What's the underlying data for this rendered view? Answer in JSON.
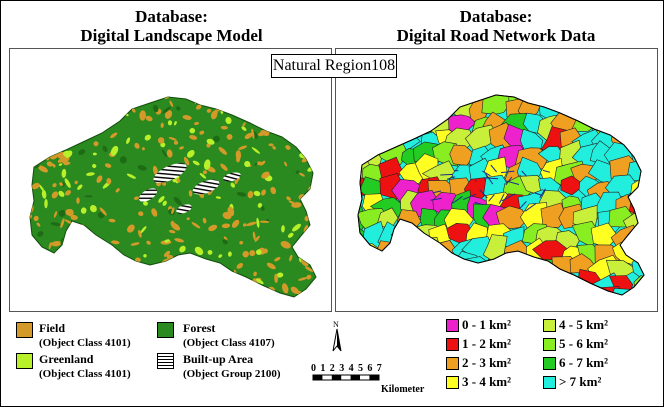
{
  "titles": {
    "left_line1": "Database:",
    "left_line2": "Digital Landscape Model",
    "right_line1": "Database:",
    "right_line2": "Digital Road Network Data"
  },
  "region_label": "Natural Region108",
  "colors": {
    "forest": "#2b8a1f",
    "field": "#d39a2a",
    "greenland": "#b8f02a",
    "builtup_hatch": "#000000"
  },
  "landscape_legend": [
    {
      "name": "Field",
      "detail": "(Object  Class 4101)",
      "color": "#d39a2a"
    },
    {
      "name": "Greenland",
      "detail": "(Object  Class 4101)",
      "color": "#b8f02a"
    },
    {
      "name": "Forest",
      "detail": "(Object  Class 4107)",
      "color": "#2b8a1f"
    },
    {
      "name": "Built-up Area",
      "detail": "(Object Group 2100)",
      "color": "hatch"
    }
  ],
  "road_classes": [
    {
      "label": "0 - 1 km²",
      "color": "#ee22cc"
    },
    {
      "label": "1 - 2 km²",
      "color": "#ee1111"
    },
    {
      "label": "2 - 3 km²",
      "color": "#f0a020"
    },
    {
      "label": "3 - 4 km²",
      "color": "#ffff22"
    },
    {
      "label": "4 - 5 km²",
      "color": "#c8f03a"
    },
    {
      "label": "5 - 6 km²",
      "color": "#88ee22"
    },
    {
      "label": "6 - 7 km²",
      "color": "#22cc22"
    },
    {
      "label": "> 7 km²",
      "color": "#22eedd"
    }
  ],
  "scale": {
    "ticks": [
      "0",
      "1",
      "2",
      "3",
      "4",
      "5",
      "6",
      "7"
    ],
    "unit": "Kilometer"
  },
  "north_arrow": "north-arrow-icon"
}
